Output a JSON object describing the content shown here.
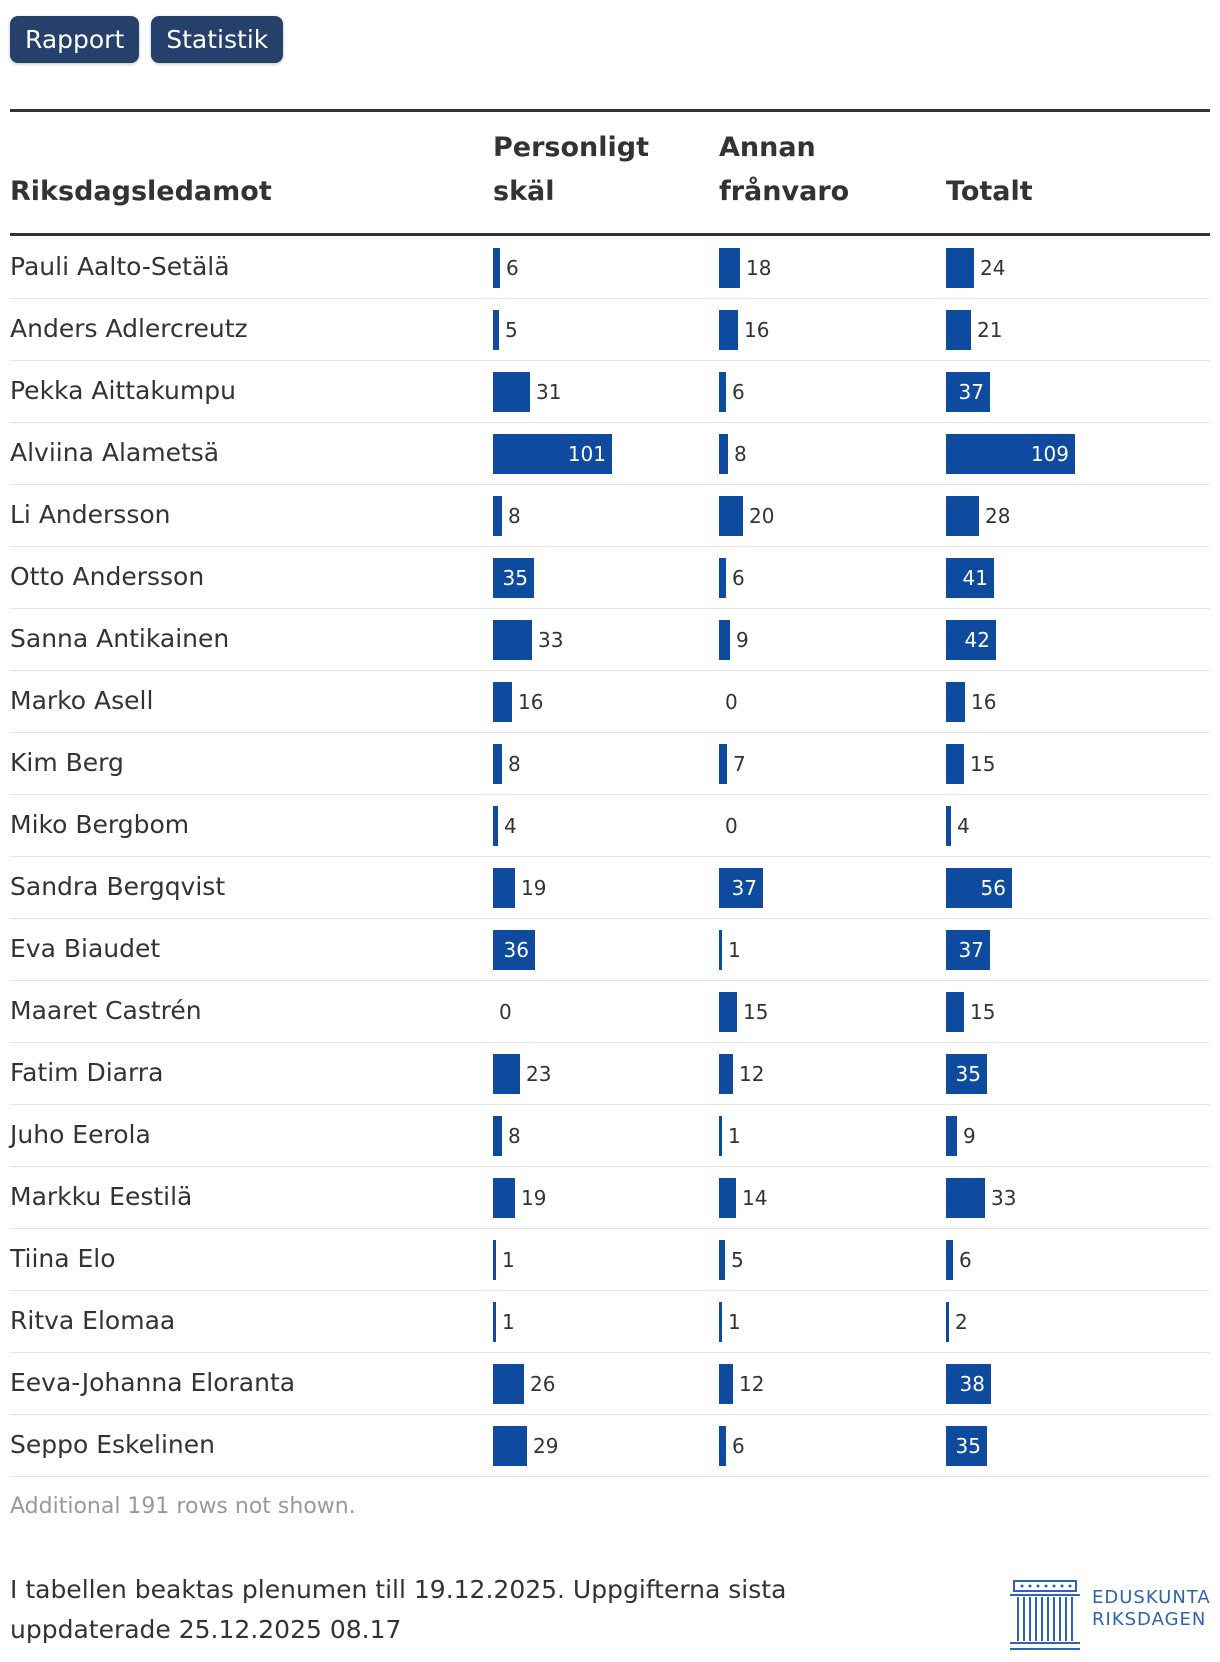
{
  "tabs": [
    "Rapport",
    "Statistik"
  ],
  "chart_data": {
    "type": "table",
    "columns": [
      {
        "key": "name",
        "label_line1": "",
        "label_line2": "Riksdagsledamot"
      },
      {
        "key": "personal",
        "label_line1": "Personligt",
        "label_line2": "skäl"
      },
      {
        "key": "other",
        "label_line1": "Annan",
        "label_line2": "frånvaro"
      },
      {
        "key": "total",
        "label_line1": "",
        "label_line2": "Totalt"
      }
    ],
    "rows": [
      {
        "name": "Pauli Aalto-Setälä",
        "personal": 6,
        "other": 18,
        "total": 24
      },
      {
        "name": "Anders Adlercreutz",
        "personal": 5,
        "other": 16,
        "total": 21
      },
      {
        "name": "Pekka Aittakumpu",
        "personal": 31,
        "other": 6,
        "total": 37
      },
      {
        "name": "Alviina Alametsä",
        "personal": 101,
        "other": 8,
        "total": 109
      },
      {
        "name": "Li Andersson",
        "personal": 8,
        "other": 20,
        "total": 28
      },
      {
        "name": "Otto Andersson",
        "personal": 35,
        "other": 6,
        "total": 41
      },
      {
        "name": "Sanna Antikainen",
        "personal": 33,
        "other": 9,
        "total": 42
      },
      {
        "name": "Marko Asell",
        "personal": 16,
        "other": 0,
        "total": 16
      },
      {
        "name": "Kim Berg",
        "personal": 8,
        "other": 7,
        "total": 15
      },
      {
        "name": "Miko Bergbom",
        "personal": 4,
        "other": 0,
        "total": 4
      },
      {
        "name": "Sandra Bergqvist",
        "personal": 19,
        "other": 37,
        "total": 56
      },
      {
        "name": "Eva Biaudet",
        "personal": 36,
        "other": 1,
        "total": 37
      },
      {
        "name": "Maaret Castrén",
        "personal": 0,
        "other": 15,
        "total": 15
      },
      {
        "name": "Fatim Diarra",
        "personal": 23,
        "other": 12,
        "total": 35
      },
      {
        "name": "Juho Eerola",
        "personal": 8,
        "other": 1,
        "total": 9
      },
      {
        "name": "Markku Eestilä",
        "personal": 19,
        "other": 14,
        "total": 33
      },
      {
        "name": "Tiina Elo",
        "personal": 1,
        "other": 5,
        "total": 6
      },
      {
        "name": "Ritva Elomaa",
        "personal": 1,
        "other": 1,
        "total": 2
      },
      {
        "name": "Eeva-Johanna Eloranta",
        "personal": 26,
        "other": 12,
        "total": 38
      },
      {
        "name": "Seppo Eskelinen",
        "personal": 29,
        "other": 6,
        "total": 35
      }
    ],
    "bar_color": "#0e4a9e"
  },
  "note": "Additional 191 rows not shown.",
  "footer_text": "I tabellen beaktas plenumen till 19.12.2025. Uppgifterna sista uppdaterade 25.12.2025 08.17",
  "logo": {
    "line1": "EDUSKUNTA",
    "line2": "RIKSDAGEN"
  }
}
